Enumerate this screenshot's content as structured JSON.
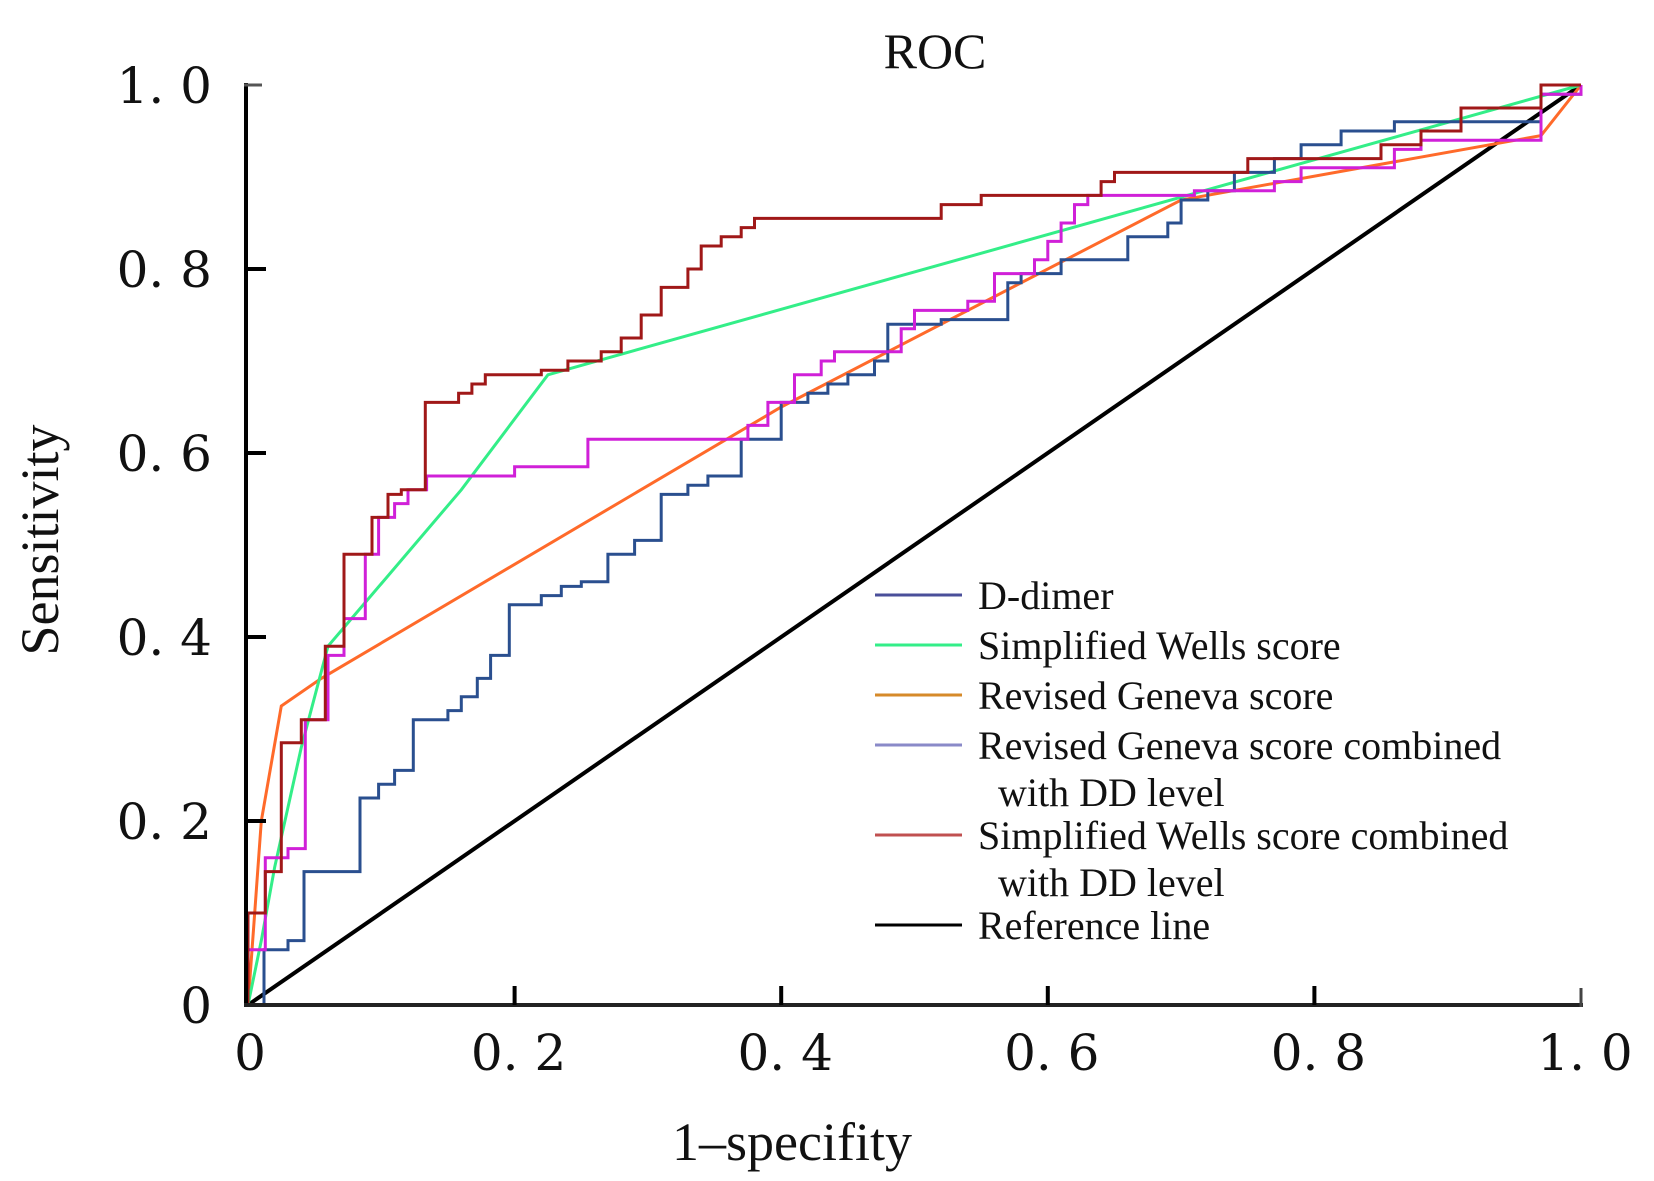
{
  "chart_data": {
    "type": "line",
    "title": "ROC",
    "xlabel": "1–specifity",
    "ylabel": "Sensitivity",
    "xlim": [
      0,
      1.0
    ],
    "ylim": [
      0,
      1.0
    ],
    "grid": false,
    "x_ticks": [
      {
        "value": 0,
        "label": "0"
      },
      {
        "value": 0.2,
        "label": "0. 2"
      },
      {
        "value": 0.4,
        "label": "0. 4"
      },
      {
        "value": 0.6,
        "label": "0. 6"
      },
      {
        "value": 0.8,
        "label": "0. 8"
      },
      {
        "value": 1.0,
        "label": "1. 0"
      }
    ],
    "y_ticks": [
      {
        "value": 0,
        "label": "0"
      },
      {
        "value": 0.2,
        "label": "0. 2"
      },
      {
        "value": 0.4,
        "label": "0. 4"
      },
      {
        "value": 0.6,
        "label": "0. 6"
      },
      {
        "value": 0.8,
        "label": "0. 8"
      },
      {
        "value": 1.0,
        "label": "1. 0"
      }
    ],
    "legend_position": "bottom-right",
    "series": [
      {
        "name": "D-dimer",
        "legend_lines": [
          "D-dimer"
        ],
        "color": "#2a4f8f",
        "legend_color": "#4a4f9a",
        "step": true,
        "points": [
          [
            0,
            0
          ],
          [
            0.012,
            0
          ],
          [
            0.012,
            0.06
          ],
          [
            0.03,
            0.06
          ],
          [
            0.03,
            0.07
          ],
          [
            0.042,
            0.07
          ],
          [
            0.042,
            0.145
          ],
          [
            0.084,
            0.145
          ],
          [
            0.084,
            0.225
          ],
          [
            0.098,
            0.225
          ],
          [
            0.098,
            0.24
          ],
          [
            0.11,
            0.24
          ],
          [
            0.11,
            0.255
          ],
          [
            0.124,
            0.255
          ],
          [
            0.124,
            0.31
          ],
          [
            0.15,
            0.31
          ],
          [
            0.15,
            0.32
          ],
          [
            0.16,
            0.32
          ],
          [
            0.16,
            0.335
          ],
          [
            0.172,
            0.335
          ],
          [
            0.172,
            0.355
          ],
          [
            0.182,
            0.355
          ],
          [
            0.182,
            0.38
          ],
          [
            0.196,
            0.38
          ],
          [
            0.196,
            0.435
          ],
          [
            0.22,
            0.435
          ],
          [
            0.22,
            0.445
          ],
          [
            0.235,
            0.445
          ],
          [
            0.235,
            0.455
          ],
          [
            0.25,
            0.455
          ],
          [
            0.25,
            0.46
          ],
          [
            0.27,
            0.46
          ],
          [
            0.27,
            0.49
          ],
          [
            0.29,
            0.49
          ],
          [
            0.29,
            0.505
          ],
          [
            0.31,
            0.505
          ],
          [
            0.31,
            0.555
          ],
          [
            0.33,
            0.555
          ],
          [
            0.33,
            0.565
          ],
          [
            0.345,
            0.565
          ],
          [
            0.345,
            0.575
          ],
          [
            0.37,
            0.575
          ],
          [
            0.37,
            0.615
          ],
          [
            0.4,
            0.615
          ],
          [
            0.4,
            0.655
          ],
          [
            0.42,
            0.655
          ],
          [
            0.42,
            0.665
          ],
          [
            0.435,
            0.665
          ],
          [
            0.435,
            0.675
          ],
          [
            0.45,
            0.675
          ],
          [
            0.45,
            0.685
          ],
          [
            0.47,
            0.685
          ],
          [
            0.47,
            0.7
          ],
          [
            0.48,
            0.7
          ],
          [
            0.48,
            0.74
          ],
          [
            0.52,
            0.74
          ],
          [
            0.52,
            0.745
          ],
          [
            0.57,
            0.745
          ],
          [
            0.57,
            0.785
          ],
          [
            0.58,
            0.785
          ],
          [
            0.58,
            0.795
          ],
          [
            0.61,
            0.795
          ],
          [
            0.61,
            0.81
          ],
          [
            0.66,
            0.81
          ],
          [
            0.66,
            0.835
          ],
          [
            0.69,
            0.835
          ],
          [
            0.69,
            0.85
          ],
          [
            0.7,
            0.85
          ],
          [
            0.7,
            0.875
          ],
          [
            0.72,
            0.875
          ],
          [
            0.72,
            0.885
          ],
          [
            0.74,
            0.885
          ],
          [
            0.74,
            0.905
          ],
          [
            0.77,
            0.905
          ],
          [
            0.77,
            0.92
          ],
          [
            0.79,
            0.92
          ],
          [
            0.79,
            0.935
          ],
          [
            0.82,
            0.935
          ],
          [
            0.82,
            0.95
          ],
          [
            0.86,
            0.95
          ],
          [
            0.86,
            0.96
          ],
          [
            0.97,
            0.96
          ],
          [
            0.97,
            0.99
          ],
          [
            1.0,
            0.99
          ],
          [
            1.0,
            1.0
          ]
        ]
      },
      {
        "name": "Simplified Wells score",
        "legend_lines": [
          "Simplified Wells score"
        ],
        "color": "#33ee88",
        "legend_color": "#33ee88",
        "step": false,
        "points": [
          [
            0,
            0
          ],
          [
            0.01,
            0.07
          ],
          [
            0.02,
            0.15
          ],
          [
            0.04,
            0.28
          ],
          [
            0.06,
            0.39
          ],
          [
            0.16,
            0.56
          ],
          [
            0.225,
            0.685
          ],
          [
            1.0,
            1.0
          ]
        ]
      },
      {
        "name": "Revised Geneva score",
        "legend_lines": [
          "Revised Geneva score"
        ],
        "color": "#ff6a2a",
        "legend_color": "#d68a2a",
        "step": false,
        "points": [
          [
            0,
            0
          ],
          [
            0.005,
            0.1
          ],
          [
            0.01,
            0.2
          ],
          [
            0.025,
            0.325
          ],
          [
            0.055,
            0.355
          ],
          [
            0.4,
            0.65
          ],
          [
            0.7,
            0.875
          ],
          [
            0.97,
            0.945
          ],
          [
            1.0,
            1.0
          ]
        ]
      },
      {
        "name": "Revised Geneva score combined with DD level",
        "legend_lines": [
          "Revised Geneva score combined",
          "with DD level"
        ],
        "color": "#d020d8",
        "legend_color": "#8a8ac8",
        "step": true,
        "points": [
          [
            0,
            0
          ],
          [
            0,
            0.06
          ],
          [
            0.013,
            0.06
          ],
          [
            0.013,
            0.16
          ],
          [
            0.03,
            0.16
          ],
          [
            0.03,
            0.17
          ],
          [
            0.043,
            0.17
          ],
          [
            0.043,
            0.31
          ],
          [
            0.06,
            0.31
          ],
          [
            0.06,
            0.38
          ],
          [
            0.072,
            0.38
          ],
          [
            0.072,
            0.42
          ],
          [
            0.088,
            0.42
          ],
          [
            0.088,
            0.49
          ],
          [
            0.098,
            0.49
          ],
          [
            0.098,
            0.53
          ],
          [
            0.11,
            0.53
          ],
          [
            0.11,
            0.545
          ],
          [
            0.12,
            0.545
          ],
          [
            0.12,
            0.56
          ],
          [
            0.134,
            0.56
          ],
          [
            0.134,
            0.575
          ],
          [
            0.2,
            0.575
          ],
          [
            0.2,
            0.585
          ],
          [
            0.255,
            0.585
          ],
          [
            0.255,
            0.615
          ],
          [
            0.375,
            0.615
          ],
          [
            0.375,
            0.63
          ],
          [
            0.39,
            0.63
          ],
          [
            0.39,
            0.655
          ],
          [
            0.41,
            0.655
          ],
          [
            0.41,
            0.685
          ],
          [
            0.43,
            0.685
          ],
          [
            0.43,
            0.7
          ],
          [
            0.44,
            0.7
          ],
          [
            0.44,
            0.71
          ],
          [
            0.49,
            0.71
          ],
          [
            0.49,
            0.735
          ],
          [
            0.5,
            0.735
          ],
          [
            0.5,
            0.755
          ],
          [
            0.54,
            0.755
          ],
          [
            0.54,
            0.765
          ],
          [
            0.56,
            0.765
          ],
          [
            0.56,
            0.795
          ],
          [
            0.59,
            0.795
          ],
          [
            0.59,
            0.81
          ],
          [
            0.6,
            0.81
          ],
          [
            0.6,
            0.83
          ],
          [
            0.61,
            0.83
          ],
          [
            0.61,
            0.85
          ],
          [
            0.62,
            0.85
          ],
          [
            0.62,
            0.87
          ],
          [
            0.63,
            0.87
          ],
          [
            0.63,
            0.88
          ],
          [
            0.71,
            0.88
          ],
          [
            0.71,
            0.885
          ],
          [
            0.77,
            0.885
          ],
          [
            0.77,
            0.895
          ],
          [
            0.79,
            0.895
          ],
          [
            0.79,
            0.91
          ],
          [
            0.86,
            0.91
          ],
          [
            0.86,
            0.93
          ],
          [
            0.88,
            0.93
          ],
          [
            0.88,
            0.94
          ],
          [
            0.97,
            0.94
          ],
          [
            0.97,
            0.99
          ],
          [
            1.0,
            0.99
          ],
          [
            1.0,
            1.0
          ]
        ]
      },
      {
        "name": "Simplified Wells score combined with DD level",
        "legend_lines": [
          "Simplified Wells score combined",
          "with DD level"
        ],
        "color": "#a01818",
        "legend_color": "#c05050",
        "step": true,
        "points": [
          [
            0,
            0
          ],
          [
            0,
            0.1
          ],
          [
            0.013,
            0.1
          ],
          [
            0.013,
            0.145
          ],
          [
            0.025,
            0.145
          ],
          [
            0.025,
            0.285
          ],
          [
            0.04,
            0.285
          ],
          [
            0.04,
            0.31
          ],
          [
            0.058,
            0.31
          ],
          [
            0.058,
            0.39
          ],
          [
            0.072,
            0.39
          ],
          [
            0.072,
            0.49
          ],
          [
            0.093,
            0.49
          ],
          [
            0.093,
            0.53
          ],
          [
            0.105,
            0.53
          ],
          [
            0.105,
            0.555
          ],
          [
            0.115,
            0.555
          ],
          [
            0.115,
            0.56
          ],
          [
            0.133,
            0.56
          ],
          [
            0.133,
            0.655
          ],
          [
            0.158,
            0.655
          ],
          [
            0.158,
            0.665
          ],
          [
            0.168,
            0.665
          ],
          [
            0.168,
            0.675
          ],
          [
            0.178,
            0.675
          ],
          [
            0.178,
            0.685
          ],
          [
            0.22,
            0.685
          ],
          [
            0.22,
            0.69
          ],
          [
            0.24,
            0.69
          ],
          [
            0.24,
            0.7
          ],
          [
            0.265,
            0.7
          ],
          [
            0.265,
            0.71
          ],
          [
            0.28,
            0.71
          ],
          [
            0.28,
            0.725
          ],
          [
            0.295,
            0.725
          ],
          [
            0.295,
            0.75
          ],
          [
            0.31,
            0.75
          ],
          [
            0.31,
            0.78
          ],
          [
            0.33,
            0.78
          ],
          [
            0.33,
            0.8
          ],
          [
            0.34,
            0.8
          ],
          [
            0.34,
            0.825
          ],
          [
            0.355,
            0.825
          ],
          [
            0.355,
            0.835
          ],
          [
            0.37,
            0.835
          ],
          [
            0.37,
            0.845
          ],
          [
            0.38,
            0.845
          ],
          [
            0.38,
            0.855
          ],
          [
            0.52,
            0.855
          ],
          [
            0.52,
            0.87
          ],
          [
            0.55,
            0.87
          ],
          [
            0.55,
            0.88
          ],
          [
            0.64,
            0.88
          ],
          [
            0.64,
            0.895
          ],
          [
            0.65,
            0.895
          ],
          [
            0.65,
            0.905
          ],
          [
            0.75,
            0.905
          ],
          [
            0.75,
            0.92
          ],
          [
            0.85,
            0.92
          ],
          [
            0.85,
            0.935
          ],
          [
            0.88,
            0.935
          ],
          [
            0.88,
            0.95
          ],
          [
            0.91,
            0.95
          ],
          [
            0.91,
            0.975
          ],
          [
            0.97,
            0.975
          ],
          [
            0.97,
            1.0
          ],
          [
            1.0,
            1.0
          ]
        ]
      },
      {
        "name": "Reference line",
        "legend_lines": [
          "Reference line"
        ],
        "color": "#000000",
        "legend_color": "#000000",
        "step": false,
        "points": [
          [
            0,
            0
          ],
          [
            1.0,
            1.0
          ]
        ]
      }
    ]
  }
}
